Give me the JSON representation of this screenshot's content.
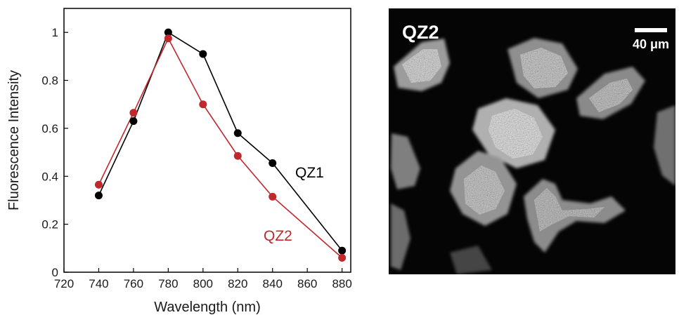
{
  "chart_data": {
    "type": "line",
    "xlabel": "Wavelength (nm)",
    "ylabel": "Fluorescence Intensity",
    "xlim": [
      720,
      885
    ],
    "ylim": [
      0,
      1.1
    ],
    "xticks": [
      720,
      740,
      760,
      780,
      800,
      820,
      840,
      860,
      880
    ],
    "yticks": [
      0,
      0.2,
      0.4,
      0.6,
      0.8,
      1
    ],
    "ytick_labels": [
      "0",
      "0.2",
      "0.4",
      "0.6",
      "0.8",
      "1"
    ],
    "grid": false,
    "legend": "none",
    "x": [
      740,
      760,
      780,
      800,
      820,
      840,
      880
    ],
    "series": [
      {
        "name": "QZ1",
        "color": "#000000",
        "values": [
          0.32,
          0.63,
          1.0,
          0.91,
          0.58,
          0.455,
          0.09
        ]
      },
      {
        "name": "QZ2",
        "color": "#c0282d",
        "values": [
          0.365,
          0.665,
          0.975,
          0.7,
          0.485,
          0.315,
          0.06
        ]
      }
    ]
  },
  "image_panel": {
    "title": "QZ2",
    "scale_bar_label": "40 μm"
  }
}
